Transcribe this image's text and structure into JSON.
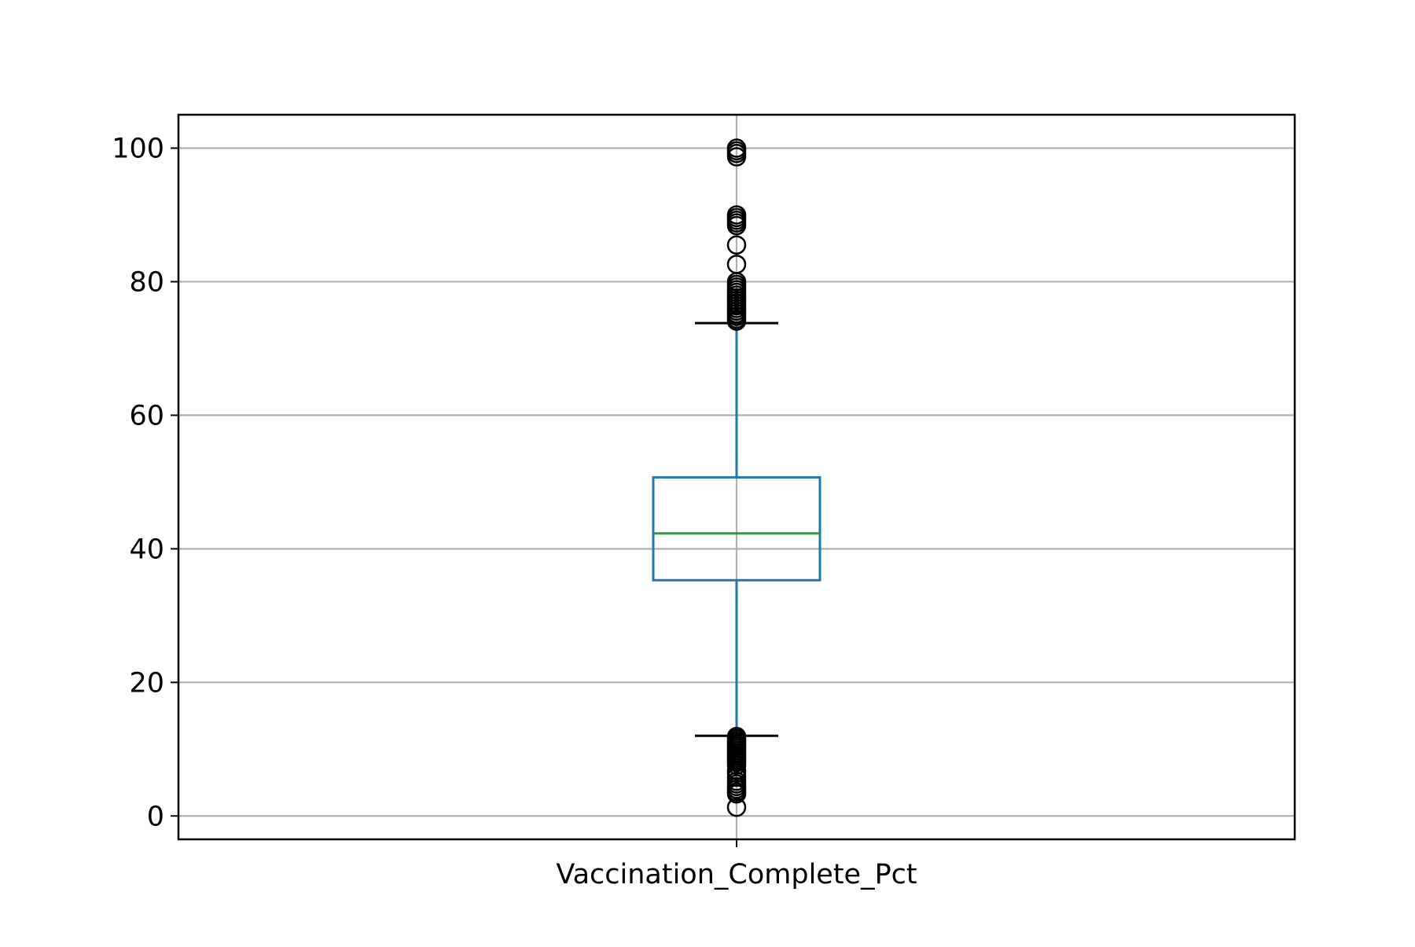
{
  "chart_data": {
    "type": "box",
    "title": "",
    "xlabel": "",
    "ylabel": "",
    "categories": [
      "Vaccination_Complete_Pct"
    ],
    "ylim": [
      -3.5,
      105
    ],
    "yticks": [
      0,
      20,
      40,
      60,
      80,
      100
    ],
    "grid": true,
    "boxes": [
      {
        "category": "Vaccination_Complete_Pct",
        "q1": 35.3,
        "median": 42.3,
        "q3": 50.7,
        "whisker_low": 12.0,
        "whisker_high": 73.8,
        "outliers": [
          100.0,
          99.6,
          99.2,
          98.7,
          90.0,
          89.6,
          89.2,
          88.8,
          88.4,
          85.5,
          82.6,
          80.0,
          79.6,
          79.2,
          78.8,
          78.4,
          78.0,
          77.6,
          77.2,
          76.8,
          76.4,
          76.0,
          75.6,
          75.2,
          74.8,
          74.4,
          74.1,
          11.9,
          11.6,
          11.3,
          11.0,
          10.7,
          10.4,
          10.1,
          9.8,
          9.5,
          9.2,
          8.9,
          8.6,
          8.3,
          8.0,
          7.6,
          6.8,
          6.4,
          5.8,
          5.2,
          4.8,
          4.4,
          4.0,
          3.6,
          3.3,
          1.3
        ]
      }
    ],
    "colors": {
      "box": "#1f77b4",
      "median": "#2ca02c",
      "caps": "#000000",
      "outliers": "#000000",
      "grid": "#b0b0b0",
      "axes": "#000000"
    }
  }
}
